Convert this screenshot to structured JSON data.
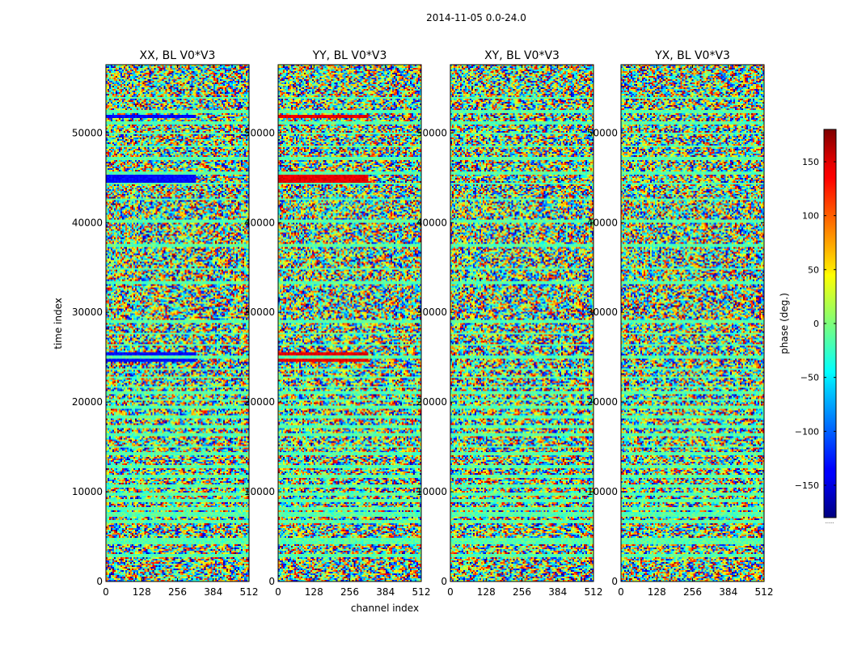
{
  "chart_data": {
    "type": "heatmap",
    "suptitle": "2014-11-05 0.0-24.0",
    "xlabel": "channel index",
    "ylabel": "time index",
    "xlim": [
      0,
      512
    ],
    "ylim": [
      0,
      57600
    ],
    "xticks": [
      0,
      128,
      256,
      384,
      512
    ],
    "yticks": [
      0,
      10000,
      20000,
      30000,
      40000,
      50000
    ],
    "panels": [
      {
        "title": "XX, BL V0*V3",
        "product": "XX"
      },
      {
        "title": "YY, BL V0*V3",
        "product": "YY"
      },
      {
        "title": "XY, BL V0*V3",
        "product": "XY"
      },
      {
        "title": "YX, BL V0*V3",
        "product": "YX"
      }
    ],
    "colorbar": {
      "label": "phase (deg.)",
      "range": [
        -180,
        180
      ],
      "ticks": [
        150,
        100,
        50,
        0,
        -50,
        -100,
        -150
      ],
      "ticklabels": [
        "150",
        "100",
        "50",
        "0",
        "−50",
        "−100",
        "−150"
      ],
      "colormap": "jet",
      "footer": "......"
    }
  }
}
